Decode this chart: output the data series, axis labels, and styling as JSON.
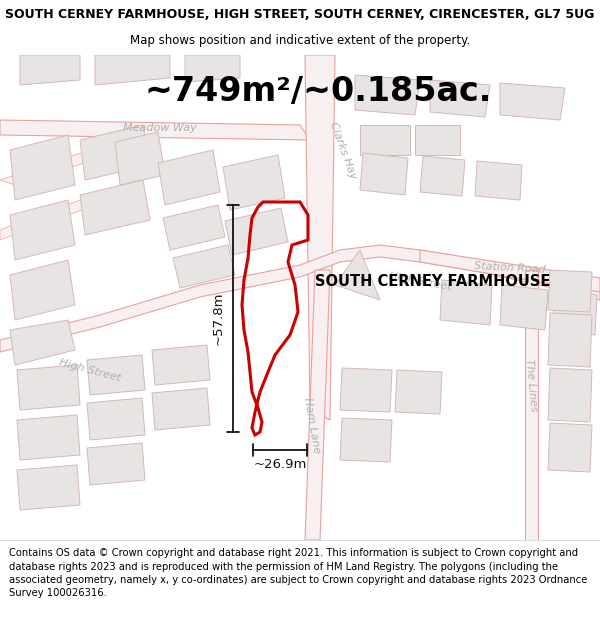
{
  "title_line1": "SOUTH CERNEY FARMHOUSE, HIGH STREET, SOUTH CERNEY, CIRENCESTER, GL7 5UG",
  "title_line2": "Map shows position and indicative extent of the property.",
  "area_text": "~749m²/~0.185ac.",
  "label_property": "SOUTH CERNEY FARMHOUSE",
  "label_width": "~26.9m",
  "label_height": "~57.8m",
  "footer_text": "Contains OS data © Crown copyright and database right 2021. This information is subject to Crown copyright and database rights 2023 and is reproduced with the permission of HM Land Registry. The polygons (including the associated geometry, namely x, y co-ordinates) are subject to Crown copyright and database rights 2023 Ordnance Survey 100026316.",
  "map_bg": "#ffffff",
  "road_outline": "#e8a0a0",
  "road_fill": "#f8f0f0",
  "building_fill": "#e8e4e4",
  "building_edge": "#d4b8b8",
  "property_color": "#cc0000",
  "street_label_color": "#b0b0b0",
  "dim_color": "#111111",
  "title_fontsize": 9.0,
  "subtitle_fontsize": 8.5,
  "area_fontsize": 24,
  "prop_label_fontsize": 10.5,
  "dim_fontsize": 9.5,
  "street_fontsize": 8.0,
  "footer_fontsize": 7.2
}
